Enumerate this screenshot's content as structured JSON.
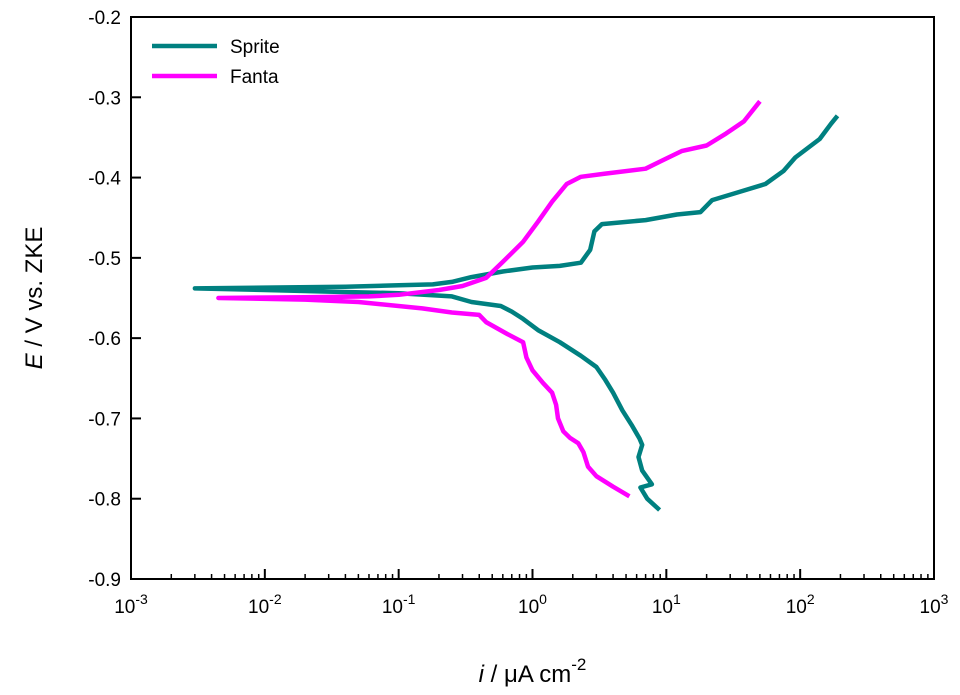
{
  "chart_data": {
    "type": "line",
    "xlabel": {
      "italic": "i",
      "text": " / μA cm",
      "sup": "-2"
    },
    "ylabel": {
      "italic": "E",
      "text": " / V vs. ZKE"
    },
    "xscale": "log",
    "xlim": [
      0.001,
      1000
    ],
    "ylim": [
      -0.9,
      -0.2
    ],
    "x_ticks": [
      {
        "value": 0.001,
        "base": "10",
        "exp": "-3"
      },
      {
        "value": 0.01,
        "base": "10",
        "exp": "-2"
      },
      {
        "value": 0.1,
        "base": "10",
        "exp": "-1"
      },
      {
        "value": 1,
        "base": "10",
        "exp": "0"
      },
      {
        "value": 10,
        "base": "10",
        "exp": "1"
      },
      {
        "value": 100,
        "base": "10",
        "exp": "2"
      },
      {
        "value": 1000,
        "base": "10",
        "exp": "3"
      }
    ],
    "y_ticks": [
      {
        "value": -0.2,
        "label": "-0.2"
      },
      {
        "value": -0.3,
        "label": "-0.3"
      },
      {
        "value": -0.4,
        "label": "-0.4"
      },
      {
        "value": -0.5,
        "label": "-0.5"
      },
      {
        "value": -0.6,
        "label": "-0.6"
      },
      {
        "value": -0.7,
        "label": "-0.7"
      },
      {
        "value": -0.8,
        "label": "-0.8"
      },
      {
        "value": -0.9,
        "label": "-0.9"
      }
    ],
    "legend_position": "top-left",
    "grid": false,
    "series": [
      {
        "name": "Sprite",
        "color": "#008080",
        "points": [
          [
            8.9,
            -0.814
          ],
          [
            7.2,
            -0.8
          ],
          [
            6.4,
            -0.786
          ],
          [
            7.8,
            -0.782
          ],
          [
            6.6,
            -0.765
          ],
          [
            6.2,
            -0.748
          ],
          [
            6.6,
            -0.733
          ],
          [
            6.3,
            -0.725
          ],
          [
            5.5,
            -0.708
          ],
          [
            4.7,
            -0.69
          ],
          [
            4.0,
            -0.668
          ],
          [
            3.5,
            -0.652
          ],
          [
            3.0,
            -0.636
          ],
          [
            2.3,
            -0.622
          ],
          [
            1.6,
            -0.605
          ],
          [
            1.1,
            -0.59
          ],
          [
            0.85,
            -0.576
          ],
          [
            0.7,
            -0.567
          ],
          [
            0.58,
            -0.56
          ],
          [
            0.35,
            -0.555
          ],
          [
            0.25,
            -0.548
          ],
          [
            0.1,
            -0.544
          ],
          [
            0.03,
            -0.542
          ],
          [
            0.01,
            -0.54
          ],
          [
            0.003,
            -0.538
          ],
          [
            0.01,
            -0.537
          ],
          [
            0.04,
            -0.536
          ],
          [
            0.1,
            -0.534
          ],
          [
            0.18,
            -0.533
          ],
          [
            0.25,
            -0.53
          ],
          [
            0.35,
            -0.524
          ],
          [
            0.6,
            -0.517
          ],
          [
            1.0,
            -0.512
          ],
          [
            1.6,
            -0.51
          ],
          [
            2.3,
            -0.506
          ],
          [
            2.7,
            -0.49
          ],
          [
            2.9,
            -0.467
          ],
          [
            3.3,
            -0.458
          ],
          [
            7.0,
            -0.453
          ],
          [
            12.0,
            -0.446
          ],
          [
            18.0,
            -0.443
          ],
          [
            22.0,
            -0.428
          ],
          [
            35.0,
            -0.418
          ],
          [
            55.0,
            -0.408
          ],
          [
            75.0,
            -0.392
          ],
          [
            92.0,
            -0.375
          ],
          [
            140.0,
            -0.352
          ],
          [
            170.0,
            -0.333
          ],
          [
            190.0,
            -0.323
          ]
        ]
      },
      {
        "name": "Fanta",
        "color": "#ff00ff",
        "points": [
          [
            5.3,
            -0.797
          ],
          [
            4.0,
            -0.785
          ],
          [
            3.0,
            -0.772
          ],
          [
            2.6,
            -0.76
          ],
          [
            2.4,
            -0.742
          ],
          [
            2.2,
            -0.731
          ],
          [
            1.9,
            -0.724
          ],
          [
            1.7,
            -0.716
          ],
          [
            1.55,
            -0.7
          ],
          [
            1.5,
            -0.683
          ],
          [
            1.4,
            -0.668
          ],
          [
            1.2,
            -0.656
          ],
          [
            1.0,
            -0.64
          ],
          [
            0.9,
            -0.624
          ],
          [
            0.85,
            -0.605
          ],
          [
            0.65,
            -0.595
          ],
          [
            0.45,
            -0.58
          ],
          [
            0.4,
            -0.571
          ],
          [
            0.25,
            -0.568
          ],
          [
            0.15,
            -0.563
          ],
          [
            0.05,
            -0.555
          ],
          [
            0.02,
            -0.552
          ],
          [
            0.0045,
            -0.55
          ],
          [
            0.02,
            -0.549
          ],
          [
            0.06,
            -0.548
          ],
          [
            0.1,
            -0.546
          ],
          [
            0.2,
            -0.54
          ],
          [
            0.3,
            -0.535
          ],
          [
            0.45,
            -0.525
          ],
          [
            0.6,
            -0.505
          ],
          [
            0.85,
            -0.48
          ],
          [
            1.1,
            -0.455
          ],
          [
            1.4,
            -0.43
          ],
          [
            1.8,
            -0.408
          ],
          [
            2.3,
            -0.399
          ],
          [
            3.5,
            -0.395
          ],
          [
            7.0,
            -0.389
          ],
          [
            9.0,
            -0.38
          ],
          [
            13.0,
            -0.367
          ],
          [
            20.0,
            -0.36
          ],
          [
            28.0,
            -0.345
          ],
          [
            38.0,
            -0.33
          ],
          [
            50.0,
            -0.305
          ]
        ]
      }
    ]
  }
}
